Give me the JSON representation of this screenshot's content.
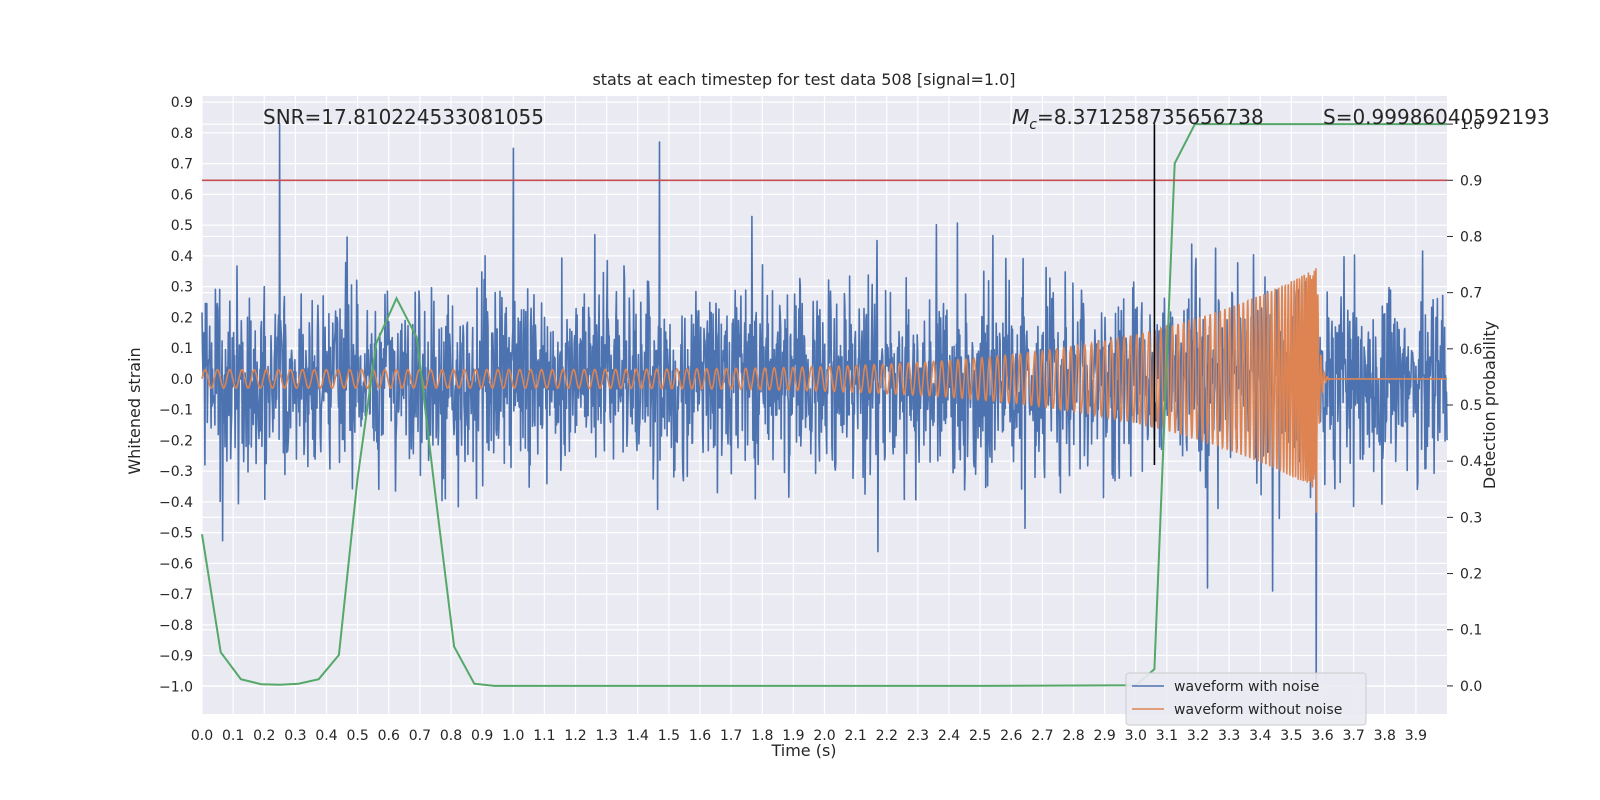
{
  "chart_data": {
    "type": "line",
    "title": "stats at each timestep for test data 508 [signal=1.0]",
    "xlabel": "Time (s)",
    "ylabel": "Whitened strain",
    "y2label": "Detection probability",
    "xlim": [
      0.0,
      4.0
    ],
    "ylim": [
      -1.09,
      0.92
    ],
    "y2lim": [
      -0.05,
      1.05
    ],
    "x_ticks": [
      "0.0",
      "0.1",
      "0.2",
      "0.3",
      "0.4",
      "0.5",
      "0.6",
      "0.7",
      "0.8",
      "0.9",
      "1.0",
      "1.1",
      "1.2",
      "1.3",
      "1.4",
      "1.5",
      "1.6",
      "1.7",
      "1.8",
      "1.9",
      "2.0",
      "2.1",
      "2.2",
      "2.3",
      "2.4",
      "2.5",
      "2.6",
      "2.7",
      "2.8",
      "2.9",
      "3.0",
      "3.1",
      "3.2",
      "3.3",
      "3.4",
      "3.5",
      "3.6",
      "3.7",
      "3.8",
      "3.9"
    ],
    "y_ticks": [
      "0.9",
      "0.8",
      "0.7",
      "0.6",
      "0.5",
      "0.4",
      "0.3",
      "0.2",
      "0.1",
      "0.0",
      "−0.1",
      "−0.2",
      "−0.3",
      "−0.4",
      "−0.5",
      "−0.6",
      "−0.7",
      "−0.8",
      "−0.9",
      "−1.0"
    ],
    "y2_ticks": [
      "0.0",
      "0.1",
      "0.2",
      "0.3",
      "0.4",
      "0.5",
      "0.6",
      "0.7",
      "0.8",
      "0.9",
      "1.0"
    ],
    "grid": true,
    "legend_position": "lower-right",
    "series": [
      {
        "name": "waveform with noise",
        "color": "#4c72b0",
        "axis": "left",
        "noise_std": 0.15,
        "spikes": [
          [
            0.25,
            0.83
          ],
          [
            1.0,
            0.75
          ],
          [
            1.47,
            0.77
          ],
          [
            3.58,
            -1.0
          ],
          [
            3.23,
            -0.68
          ],
          [
            3.44,
            -0.69
          ]
        ]
      },
      {
        "name": "waveform without noise",
        "color": "#dd8452",
        "axis": "left",
        "cycles": 145,
        "amplitude_start": 0.03,
        "amplitude_peak": 0.36,
        "merger_time": 3.58,
        "ringdown_end": 3.62
      }
    ],
    "detection_probability": {
      "color": "#55a868",
      "axis": "right",
      "x": [
        0.0,
        0.06,
        0.125,
        0.19,
        0.25,
        0.31,
        0.375,
        0.44,
        0.5,
        0.56,
        0.625,
        0.69,
        0.75,
        0.81,
        0.875,
        0.94,
        1.0,
        1.5,
        2.0,
        2.5,
        3.0,
        3.06,
        3.125,
        3.19,
        3.25,
        3.5,
        4.0
      ],
      "y": [
        0.27,
        0.06,
        0.012,
        0.003,
        0.002,
        0.004,
        0.012,
        0.055,
        0.37,
        0.61,
        0.69,
        0.62,
        0.34,
        0.07,
        0.004,
        0.0,
        0.0,
        0.0,
        0.0,
        0.0,
        0.001,
        0.03,
        0.93,
        1.0,
        1.0,
        1.0,
        1.0
      ]
    },
    "threshold": {
      "value": 0.9,
      "axis": "right",
      "color": "#c44e52"
    },
    "marker_time": 3.06,
    "annotations": {
      "snr": "SNR=17.810224533081055",
      "mc_symbol": "M",
      "mc_subscript": "c",
      "mc_value": "=8.371258735656738",
      "s": "S=0.99986040592193"
    }
  }
}
